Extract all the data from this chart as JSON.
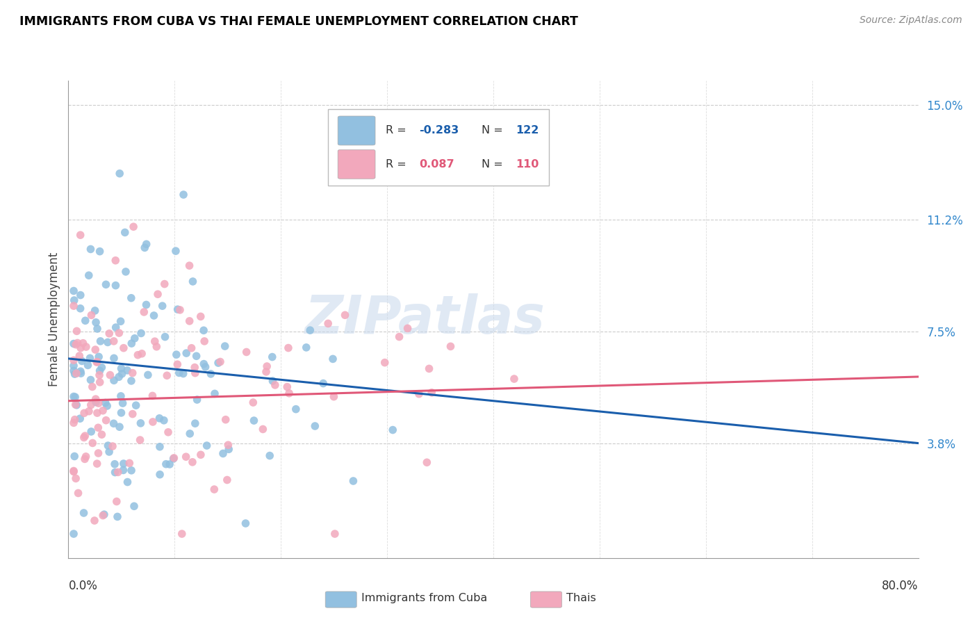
{
  "title": "IMMIGRANTS FROM CUBA VS THAI FEMALE UNEMPLOYMENT CORRELATION CHART",
  "source": "Source: ZipAtlas.com",
  "ylabel": "Female Unemployment",
  "xlim": [
    0.0,
    0.8
  ],
  "ylim": [
    0.0,
    0.158
  ],
  "ytick_vals": [
    0.038,
    0.075,
    0.112,
    0.15
  ],
  "ytick_labels": [
    "3.8%",
    "7.5%",
    "11.2%",
    "15.0%"
  ],
  "color_cuba": "#92C0E0",
  "color_thai": "#F2A8BC",
  "trendline_cuba_color": "#1A5EAC",
  "trendline_thai_color": "#E05878",
  "watermark": "ZIPatlas",
  "legend_r_cuba": "-0.283",
  "legend_n_cuba": "122",
  "legend_r_thai": "0.087",
  "legend_n_thai": "110",
  "trendline_cuba_x0": 0.0,
  "trendline_cuba_y0": 0.066,
  "trendline_cuba_x1": 0.8,
  "trendline_cuba_y1": 0.038,
  "trendline_thai_x0": 0.0,
  "trendline_thai_y0": 0.052,
  "trendline_thai_x1": 0.8,
  "trendline_thai_y1": 0.06
}
